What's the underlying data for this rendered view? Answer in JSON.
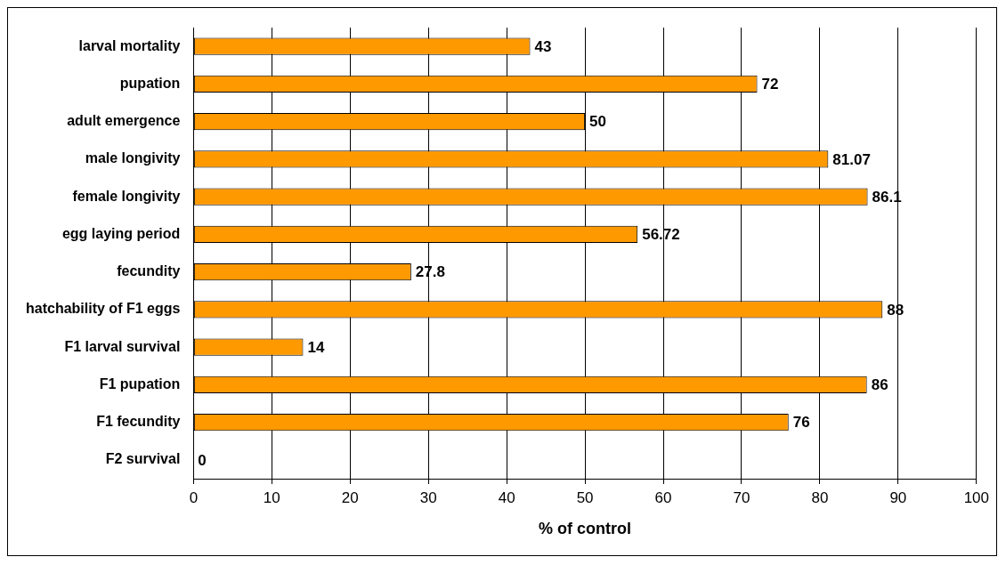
{
  "chart_data": {
    "type": "bar",
    "orientation": "horizontal",
    "xlabel": "% of control",
    "categories": [
      "larval mortality",
      "pupation",
      "adult emergence",
      "male longivity",
      "female longivity",
      "egg laying period",
      "fecundity",
      "hatchability of F1 eggs",
      "F1 larval survival",
      "F1 pupation",
      "F1 fecundity",
      "F2 survival"
    ],
    "values": [
      43,
      72,
      50,
      81.07,
      86.1,
      56.72,
      27.8,
      88,
      14,
      86,
      76,
      0
    ],
    "color": "#ff9900",
    "data_labels": true,
    "grid": "x",
    "legend": false,
    "xlim": [
      0,
      100
    ],
    "xticks": [
      0,
      10,
      20,
      30,
      40,
      50,
      60,
      70,
      80,
      90,
      100
    ]
  }
}
